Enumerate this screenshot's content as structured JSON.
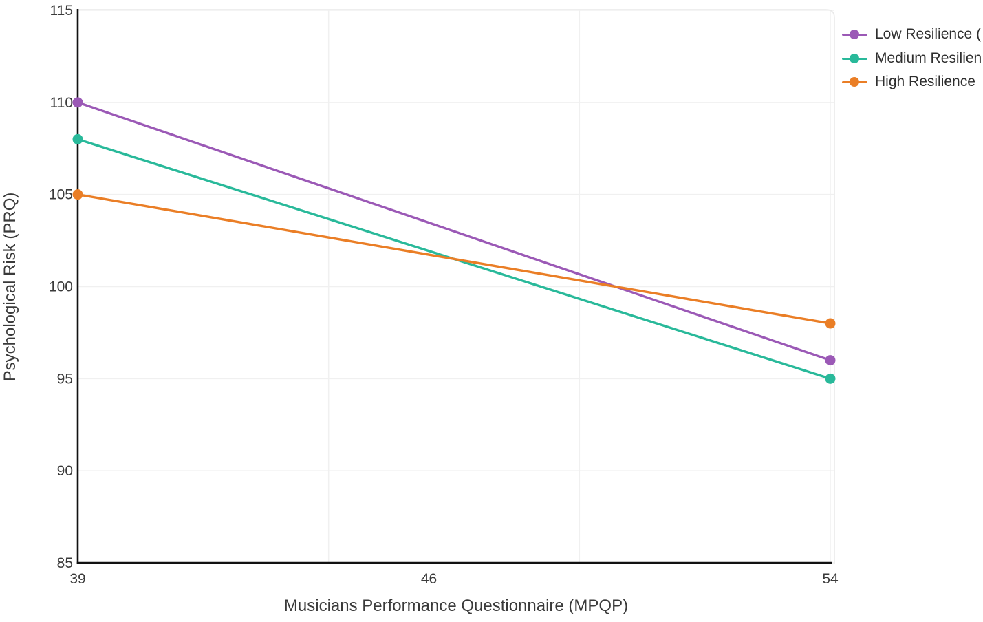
{
  "chart_data": {
    "type": "line",
    "title": "",
    "xlabel": "Musicians Performance Questionnaire (MPQP)",
    "ylabel": "Psychological Risk (PRQ)",
    "x": [
      39,
      54
    ],
    "xticks": [
      "39",
      "46",
      "54"
    ],
    "yticks": [
      "85",
      "90",
      "95",
      "100",
      "105",
      "110",
      "115"
    ],
    "xlim": [
      39,
      54.1
    ],
    "ylim": [
      85,
      115
    ],
    "x_gridline_values": [
      44,
      49,
      54
    ],
    "grid": true,
    "legend_position": "top-right",
    "series": [
      {
        "name": "Low Resilience (",
        "values": [
          110,
          96
        ],
        "color": "#9b59b6"
      },
      {
        "name": "Medium Resilien",
        "values": [
          108,
          95
        ],
        "color": "#29b99a"
      },
      {
        "name": "High Resilience",
        "values": [
          105,
          98
        ],
        "color": "#ea7e26"
      }
    ],
    "styles": {
      "axis_color": "#111111",
      "grid_color": "#f0f0f0",
      "panel_border_color": "#e9e9e9",
      "tick_label_color": "#3a3a3a",
      "axis_title_color": "#3a3a3a",
      "legend_text_color": "#2e2e2e",
      "background_color": "#ffffff"
    }
  }
}
